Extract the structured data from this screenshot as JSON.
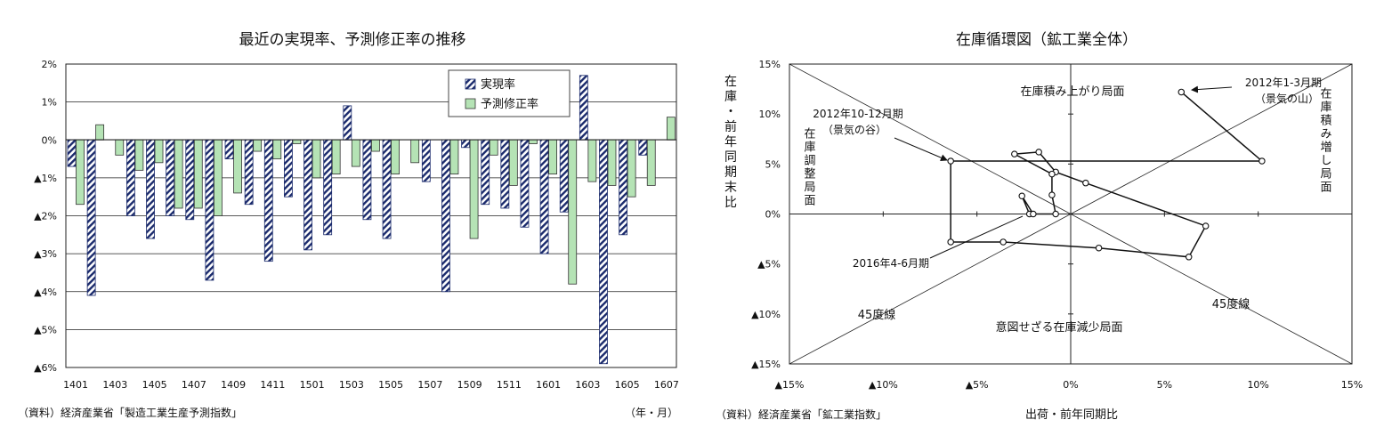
{
  "chart_data": [
    {
      "type": "bar",
      "title": "最近の実現率、予測修正率の推移",
      "xlabel": "",
      "ylabel": "",
      "unit_label": "（年・月）",
      "source": "（資料）経済産業省「製造工業生産予測指数」",
      "ylim": [
        -6,
        2
      ],
      "ytick_values": [
        2,
        1,
        0,
        -1,
        -2,
        -3,
        -4,
        -5,
        -6
      ],
      "ytick_labels": [
        "2%",
        "1%",
        "0%",
        "▲1%",
        "▲2%",
        "▲3%",
        "▲4%",
        "▲5%",
        "▲6%"
      ],
      "grid": true,
      "legend": "top-right",
      "categories": [
        "1401",
        "1402",
        "1403",
        "1404",
        "1405",
        "1406",
        "1407",
        "1408",
        "1409",
        "1410",
        "1411",
        "1412",
        "1501",
        "1502",
        "1503",
        "1504",
        "1505",
        "1506",
        "1507",
        "1508",
        "1509",
        "1510",
        "1511",
        "1512",
        "1601",
        "1602",
        "1603",
        "1604",
        "1605",
        "1606",
        "1607"
      ],
      "xtick_labels": [
        "1401",
        "1403",
        "1405",
        "1407",
        "1409",
        "1411",
        "1501",
        "1503",
        "1505",
        "1507",
        "1509",
        "1511",
        "1601",
        "1603",
        "1605",
        "1607"
      ],
      "series": [
        {
          "name": "実現率",
          "color": "#1a2a6c",
          "values": [
            -0.7,
            -4.1,
            null,
            -2.0,
            -2.6,
            -2.0,
            -2.1,
            -3.7,
            -0.5,
            -1.7,
            -3.2,
            -1.5,
            -2.9,
            -2.5,
            0.9,
            -2.1,
            -2.6,
            null,
            -1.1,
            -4.0,
            -0.2,
            -1.7,
            -1.8,
            -2.3,
            -3.0,
            -1.9,
            1.7,
            -5.9,
            -2.5,
            -0.4,
            null
          ]
        },
        {
          "name": "予測修正率",
          "color": "#b5e3b5",
          "values": [
            -1.7,
            0.4,
            -0.4,
            -0.8,
            -0.6,
            -1.8,
            -1.8,
            -2.0,
            -1.4,
            -0.3,
            -0.5,
            -0.1,
            -1.0,
            -0.9,
            -0.7,
            -0.3,
            -0.9,
            -0.6,
            null,
            -0.9,
            -2.6,
            -0.4,
            -1.2,
            -0.1,
            -0.9,
            -3.8,
            -1.1,
            -1.2,
            -1.5,
            -1.2,
            0.6
          ]
        }
      ]
    },
    {
      "type": "scatter",
      "title": "在庫循環図（鉱工業全体）",
      "xlabel": "出荷・前年同期比",
      "ylabel": "在庫・前年同期末比",
      "source": "（資料）経済産業省「鉱工業指数」",
      "xlim": [
        -15,
        15
      ],
      "ylim": [
        -15,
        15
      ],
      "xtick_values": [
        -15,
        -10,
        -5,
        0,
        5,
        10,
        15
      ],
      "xtick_labels": [
        "▲15%",
        "▲10%",
        "▲5%",
        "0%",
        "5%",
        "10%",
        "15%"
      ],
      "ytick_values": [
        15,
        10,
        5,
        0,
        -5,
        -10,
        -15
      ],
      "ytick_labels": [
        "15%",
        "10%",
        "5%",
        "0%",
        "▲5%",
        "▲10%",
        "▲15%"
      ],
      "grid": false,
      "connected": true,
      "points": [
        {
          "x": 5.9,
          "y": 12.2
        },
        {
          "x": 10.2,
          "y": 5.3
        },
        {
          "x": -6.4,
          "y": 5.3
        },
        {
          "x": -6.4,
          "y": -2.8
        },
        {
          "x": -3.6,
          "y": -2.8
        },
        {
          "x": 1.5,
          "y": -3.4
        },
        {
          "x": 6.3,
          "y": -4.3
        },
        {
          "x": 7.2,
          "y": -1.2
        },
        {
          "x": 0.8,
          "y": 3.1
        },
        {
          "x": -0.8,
          "y": 4.2
        },
        {
          "x": -1.7,
          "y": 6.2
        },
        {
          "x": -3.0,
          "y": 6.0
        },
        {
          "x": -1.0,
          "y": 4.0
        },
        {
          "x": -1.0,
          "y": 1.9
        },
        {
          "x": -0.8,
          "y": 0.0
        },
        {
          "x": -2.2,
          "y": 0.0
        },
        {
          "x": -2.6,
          "y": 1.8
        },
        {
          "x": -2.0,
          "y": 0.0
        }
      ],
      "phase_labels": {
        "top": "在庫積み上がり局面",
        "right": "在庫積み増し局面",
        "bottom": "意図せざる在庫減少局面",
        "left": "在庫調整局面"
      },
      "line_labels": {
        "upper": "45度線",
        "lower": "45度線"
      },
      "annotations": [
        {
          "label1": "2012年1-3月期",
          "label2": "（景気の山）"
        },
        {
          "label1": "2012年10-12月期",
          "label2": "（景気の谷）"
        },
        {
          "label1": "2016年4-6月期"
        }
      ]
    }
  ]
}
